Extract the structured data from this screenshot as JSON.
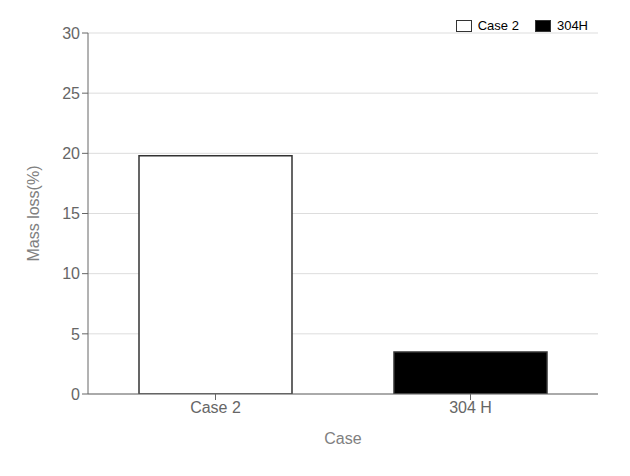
{
  "chart_data": {
    "type": "bar",
    "categories": [
      "Case 2",
      "304 H"
    ],
    "series": [
      {
        "name": "Case 2",
        "color": "white",
        "values": [
          19.8,
          null
        ]
      },
      {
        "name": "304H",
        "color": "black",
        "values": [
          null,
          3.5
        ]
      }
    ],
    "xlabel": "Case",
    "ylabel": "Mass loss(%)",
    "ylim": [
      0,
      30
    ],
    "yticks": [
      0,
      5,
      10,
      15,
      20,
      25,
      30
    ],
    "grid": true,
    "legend": "upper right"
  }
}
